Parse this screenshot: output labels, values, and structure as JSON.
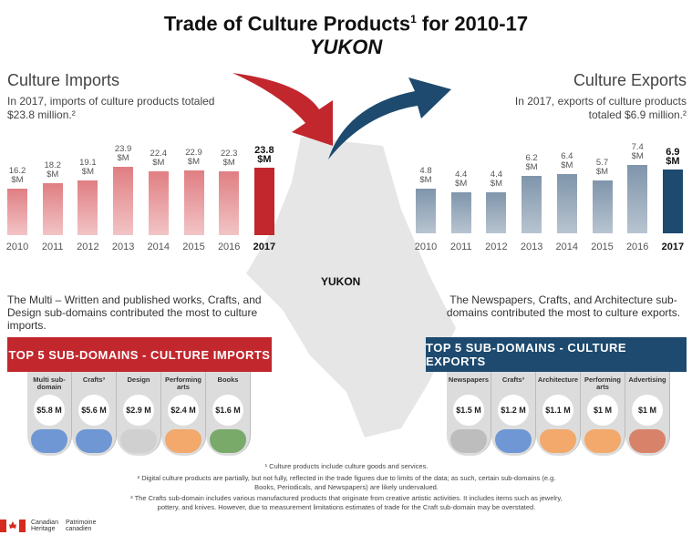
{
  "title": {
    "main": "Trade of Culture Products",
    "sup": "1",
    "tail": " for 2010-17",
    "region": "YUKON"
  },
  "imports": {
    "heading": "Culture Imports",
    "intro": "In 2017, imports of culture products totaled $23.8 million.²",
    "desc": "The Multi – Written and published works, Crafts, and Design sub-domains contributed the most to culture imports.",
    "banner": "TOP 5 SUB-DOMAINS - CULTURE IMPORTS",
    "top5": [
      {
        "label": "Multi sub-domain",
        "value": "$5.8 M",
        "icon": "people-icon",
        "color": "#6f97d4"
      },
      {
        "label": "Crafts³",
        "value": "$5.6 M",
        "icon": "palette-icon",
        "color": "#6f97d4"
      },
      {
        "label": "Design",
        "value": "$2.9 M",
        "icon": "drawing-hand-icon",
        "color": "#d0d0d0"
      },
      {
        "label": "Performing arts",
        "value": "$2.4 M",
        "icon": "theatre-masks-icon",
        "color": "#f2a96b"
      },
      {
        "label": "Books",
        "value": "$1.6 M",
        "icon": "book-icon",
        "color": "#7aaa6a"
      }
    ]
  },
  "exports": {
    "heading": "Culture Exports",
    "intro": "In 2017, exports of culture products totaled $6.9 million.²",
    "desc": "The Newspapers, Crafts, and Architecture sub-domains contributed the most to culture exports.",
    "banner": "TOP 5 SUB-DOMAINS - CULTURE EXPORTS",
    "top5": [
      {
        "label": "Newspapers",
        "value": "$1.5 M",
        "icon": "newspaper-icon",
        "color": "#bdbdbd"
      },
      {
        "label": "Crafts³",
        "value": "$1.2 M",
        "icon": "palette-icon",
        "color": "#6f97d4"
      },
      {
        "label": "Architecture",
        "value": "$1.1 M",
        "icon": "architecture-icon",
        "color": "#f2a96b"
      },
      {
        "label": "Performing arts",
        "value": "$1 M",
        "icon": "theatre-masks-icon",
        "color": "#f2a96b"
      },
      {
        "label": "Advertising",
        "value": "$1 M",
        "icon": "megaphone-icon",
        "color": "#d9826a"
      }
    ]
  },
  "map_label": "YUKON",
  "footnotes": [
    "¹ Culture products include culture goods and services.",
    "² Digital culture products are partially, but not fully, reflected in the trade figures due to limits of the data; as such, certain sub-domains (e.g. Books, Periodicals, and Newspapers) are likely undervalued.",
    "³ The Crafts sub-domain includes various manufactured products that originate from creative artistic activities. It includes items such as jewelry, pottery, and knives. However, due to measurement limitations estimates of trade for the Craft sub-domain may be overstated."
  ],
  "logo": {
    "en": "Canadian Heritage",
    "fr": "Patrimoine canadien"
  },
  "colors": {
    "import": "#c1272d",
    "export": "#1d4a6e",
    "bg": "#e6e6e6"
  },
  "chart_data": [
    {
      "type": "bar",
      "title": "Culture Imports",
      "categories": [
        "2010",
        "2011",
        "2012",
        "2013",
        "2014",
        "2015",
        "2016",
        "2017"
      ],
      "values": [
        16.2,
        18.2,
        19.1,
        23.9,
        22.4,
        22.9,
        22.3,
        23.8
      ],
      "labels": [
        "16.2 $M",
        "18.2 $M",
        "19.1 $M",
        "23.9 $M",
        "22.4 $M",
        "22.9 $M",
        "22.3 $M",
        "23.8 $M"
      ],
      "unit": "$M"
    },
    {
      "type": "bar",
      "title": "Culture Exports",
      "categories": [
        "2010",
        "2011",
        "2012",
        "2013",
        "2014",
        "2015",
        "2016",
        "2017"
      ],
      "values": [
        4.8,
        4.4,
        4.4,
        6.2,
        6.4,
        5.7,
        7.4,
        6.9
      ],
      "labels": [
        "4.8 $M",
        "4.4 $M",
        "4.4 $M",
        "6.2 $M",
        "6.4 $M",
        "5.7 $M",
        "7.4 $M",
        "6.9 $M"
      ],
      "unit": "$M"
    }
  ]
}
